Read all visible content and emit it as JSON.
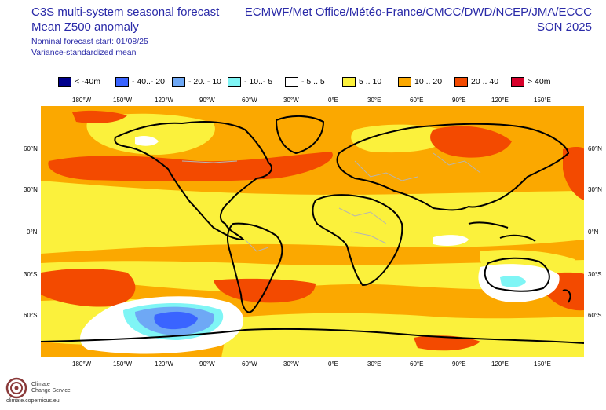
{
  "header": {
    "title": "C3S multi-system seasonal forecast",
    "subtitle": "Mean Z500 anomaly",
    "forecast_start": "Nominal forecast start: 01/08/25",
    "variance_note": "Variance-standardized mean",
    "centres": "ECMWF/Met Office/Météo-France/CMCC/DWD/NCEP/JMA/ECCC",
    "season": "SON 2025"
  },
  "legend": [
    {
      "label": "< -40m",
      "color": "#00008b"
    },
    {
      "label": "- 40..- 20",
      "color": "#3a64ff"
    },
    {
      "label": "- 20..- 10",
      "color": "#6ea8f5"
    },
    {
      "label": "- 10..- 5",
      "color": "#7ff5f5"
    },
    {
      "label": "- 5 .. 5",
      "color": "#ffffff"
    },
    {
      "label": "5 .. 10",
      "color": "#fbf13c"
    },
    {
      "label": "10 .. 20",
      "color": "#fba800"
    },
    {
      "label": "20 .. 40",
      "color": "#f34a00"
    },
    {
      "label": "> 40m",
      "color": "#d7002a"
    }
  ],
  "longitude_labels": [
    "180°W",
    "150°W",
    "120°W",
    "90°W",
    "60°W",
    "30°W",
    "0°E",
    "30°E",
    "60°E",
    "90°E",
    "120°E",
    "150°E"
  ],
  "latitude_labels": [
    "60°N",
    "30°N",
    "0°N",
    "30°S",
    "60°S"
  ],
  "logo": {
    "line1": "Climate",
    "line2": "Change Service",
    "url": "climate.copernicus.eu"
  }
}
